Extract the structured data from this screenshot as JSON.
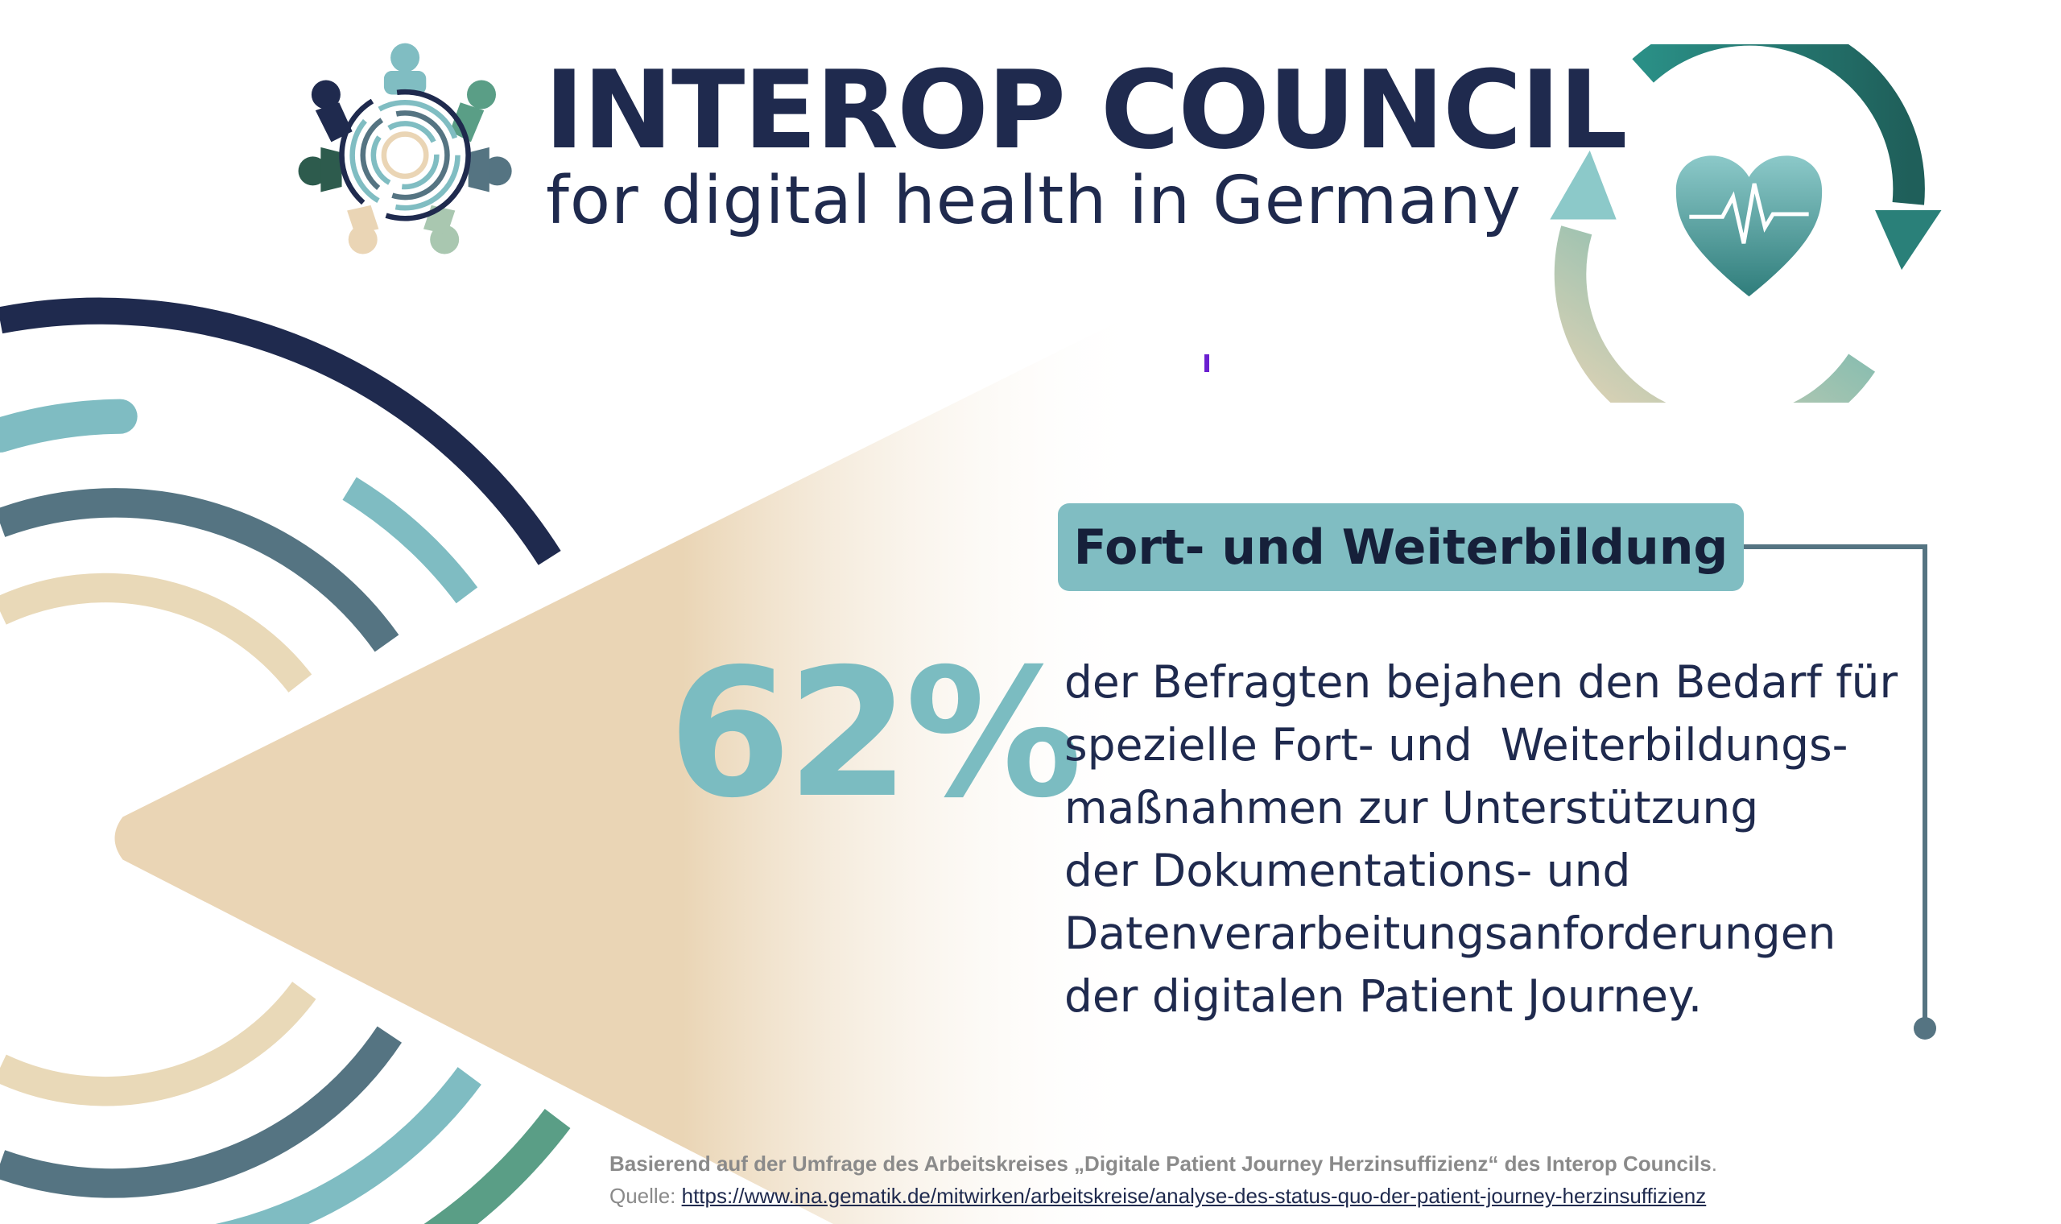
{
  "header": {
    "title": "INTEROP COUNCIL",
    "subtitle": "for digital health in Germany",
    "logo_icon": "people-circle-logo-icon",
    "cycle_icon": "heart-heartbeat-cycle-icon"
  },
  "main": {
    "tag": "Fort- und Weiterbildung",
    "percentage": "62%",
    "percentage_value": 62,
    "description_lines": [
      "der Befragten bejahen den Bedarf für",
      "spezielle Fort- und  Weiterbildungs-",
      "maßnahmen zur Unterstützung",
      "der Dokumentations- und",
      "Datenverarbeitungsanforderungen",
      "der digitalen Patient Journey."
    ]
  },
  "footer": {
    "basis": "Basierend auf der Umfrage des Arbeitskreises „Digitale Patient Journey Herzinsuffizienz“ des Interop Councils",
    "basis_end": ".",
    "source_label": "Quelle: ",
    "source_url": "https://www.ina.gematik.de/mitwirken/arbeitskreise/analyse-des-status-quo-der-patient-journey-herzinsuffizienz"
  },
  "colors": {
    "navy": "#1f2a4e",
    "teal": "#7bbcc1",
    "slate": "#557482",
    "beige": "#e9d6b6",
    "green": "#5a9e86"
  }
}
